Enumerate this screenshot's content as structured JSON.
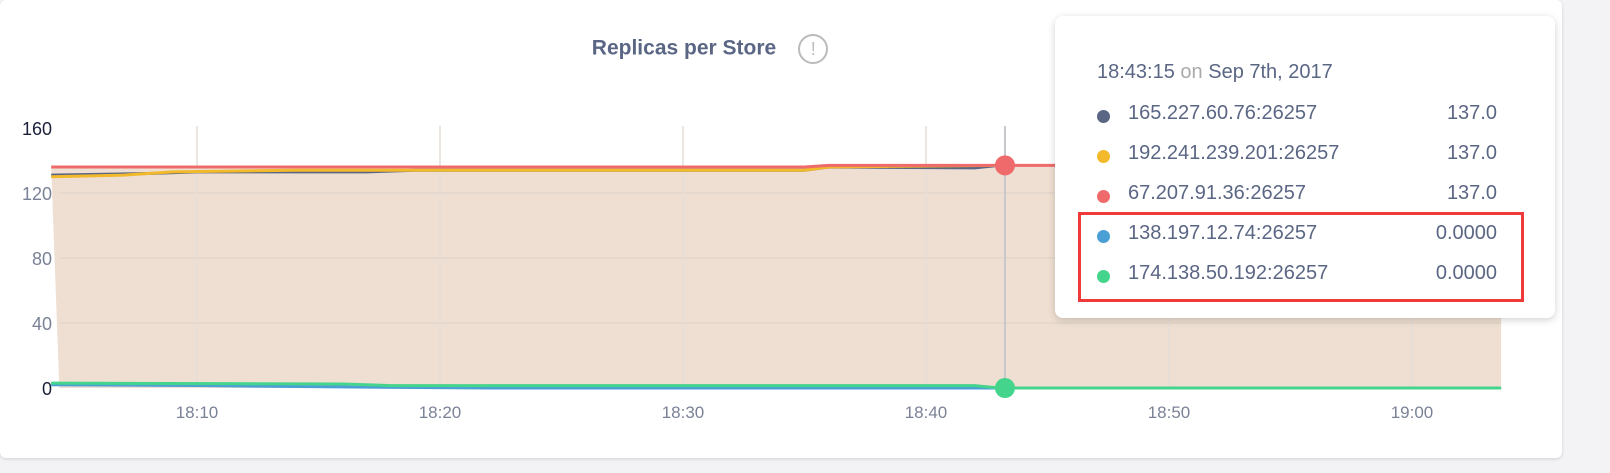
{
  "title": "Replicas per Store",
  "info_icon": "!",
  "tooltip": {
    "time": "18:43:15",
    "on": "on",
    "date": "Sep 7th, 2017",
    "rows": [
      {
        "label": "165.227.60.76:26257",
        "value": "137.0",
        "color": "#5a6684"
      },
      {
        "label": "192.241.239.201:26257",
        "value": "137.0",
        "color": "#f2b92b"
      },
      {
        "label": "67.207.91.36:26257",
        "value": "137.0",
        "color": "#ef6b6b"
      },
      {
        "label": "138.197.12.74:26257",
        "value": "0.0000",
        "color": "#4a9fd5"
      },
      {
        "label": "174.138.50.192:26257",
        "value": "0.0000",
        "color": "#45d48c"
      }
    ]
  },
  "chart_data": {
    "type": "line",
    "title": "Replicas per Store",
    "ylim": [
      0,
      160
    ],
    "yticks": [
      "0",
      "40",
      "80",
      "120",
      "160"
    ],
    "xticks": [
      "18:10",
      "18:20",
      "18:30",
      "18:40",
      "18:50",
      "19:00"
    ],
    "xlim": [
      "18:04:20",
      "19:03:40"
    ],
    "grid": true,
    "hover_time": "18:43:15",
    "series": [
      {
        "name": "165.227.60.76:26257",
        "color": "#5a6684",
        "points": [
          [
            "18:04",
            131
          ],
          [
            "18:08",
            132
          ],
          [
            "18:10",
            133
          ],
          [
            "18:17",
            133
          ],
          [
            "18:19",
            134
          ],
          [
            "18:35",
            134
          ],
          [
            "18:36",
            136
          ],
          [
            "18:42",
            135.5
          ],
          [
            "18:43",
            137
          ]
        ]
      },
      {
        "name": "192.241.239.201:26257",
        "color": "#f2b92b",
        "points": [
          [
            "18:04",
            130
          ],
          [
            "18:07",
            131
          ],
          [
            "18:09",
            133
          ],
          [
            "18:14",
            134
          ],
          [
            "18:35",
            134
          ],
          [
            "18:36",
            136
          ],
          [
            "18:43",
            137
          ]
        ]
      },
      {
        "name": "67.207.91.36:26257",
        "color": "#ef6b6b",
        "points": [
          [
            "18:04",
            136
          ],
          [
            "18:35",
            136
          ],
          [
            "18:36",
            137
          ],
          [
            "19:03:40",
            137
          ]
        ]
      },
      {
        "name": "138.197.12.74:26257",
        "color": "#4a9fd5",
        "points": [
          [
            "18:04",
            2
          ],
          [
            "18:10",
            1.5
          ],
          [
            "18:17",
            0.5
          ],
          [
            "18:22",
            0
          ],
          [
            "19:03:40",
            0
          ]
        ]
      },
      {
        "name": "174.138.50.192:26257",
        "color": "#45d48c",
        "points": [
          [
            "18:04",
            3
          ],
          [
            "18:16",
            2.5
          ],
          [
            "18:18",
            1.5
          ],
          [
            "18:42",
            1.5
          ],
          [
            "18:43",
            0
          ],
          [
            "19:03:40",
            0
          ]
        ]
      }
    ]
  }
}
